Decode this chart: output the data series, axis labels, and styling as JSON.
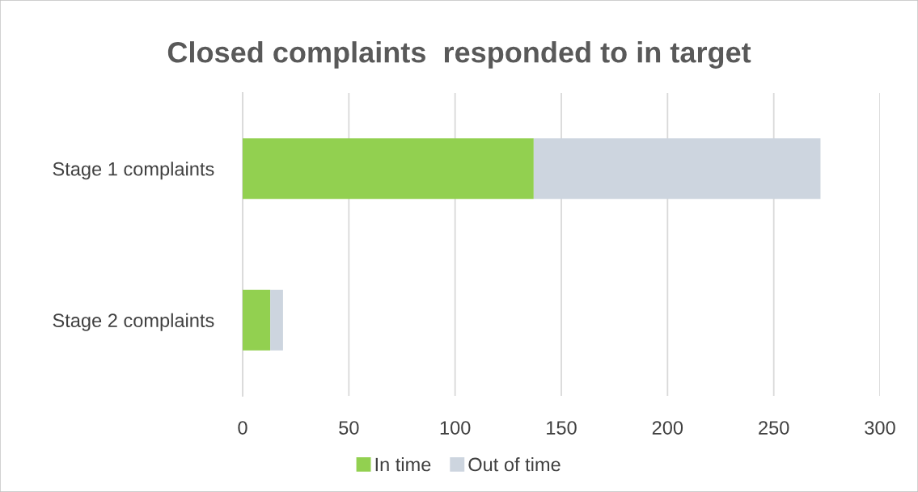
{
  "chart_data": {
    "type": "bar",
    "orientation": "horizontal",
    "stacked": true,
    "title": "Closed complaints  responded to in target",
    "categories": [
      "Stage 1 complaints",
      "Stage 2 complaints"
    ],
    "series": [
      {
        "name": "In time",
        "color": "#92d050",
        "values": [
          137,
          13
        ]
      },
      {
        "name": "Out of time",
        "color": "#cdd5df",
        "values": [
          135,
          6
        ]
      }
    ],
    "xlim": [
      0,
      300
    ],
    "xticks": [
      0,
      50,
      100,
      150,
      200,
      250,
      300
    ],
    "grid": "x",
    "legend": "bottom"
  }
}
